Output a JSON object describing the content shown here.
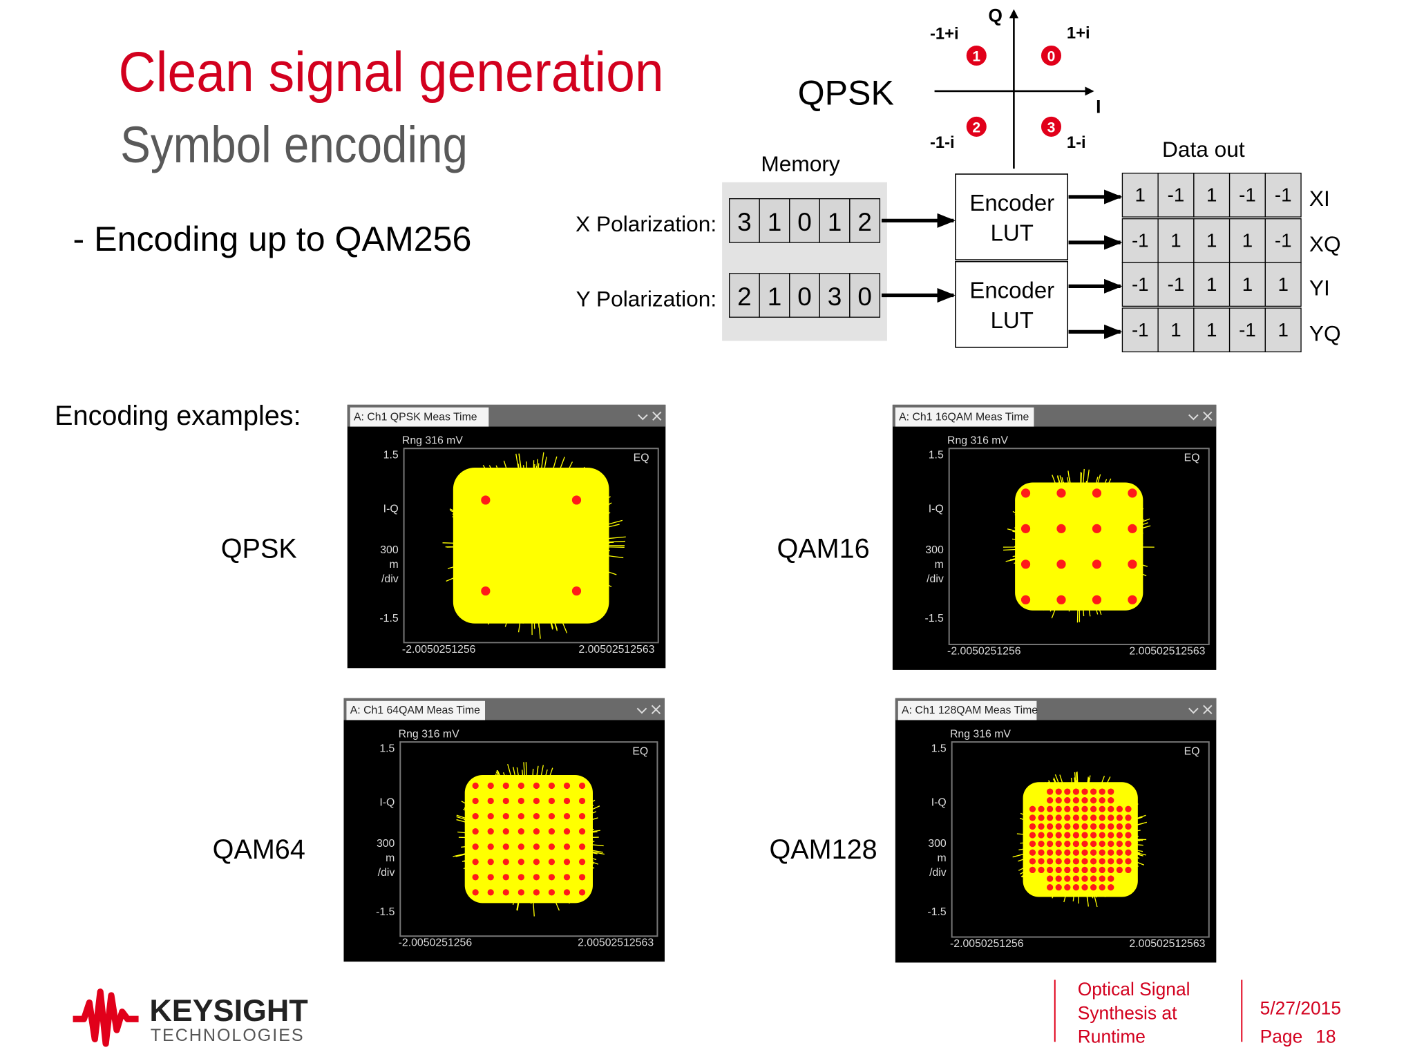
{
  "header": {
    "title": "Clean signal generation",
    "subtitle": "Symbol encoding"
  },
  "bullet": "- Encoding up to QAM256",
  "qpsk_diagram": {
    "label": "QPSK",
    "axis_q": "Q",
    "axis_i": "I",
    "points": [
      {
        "label": "-1+i",
        "symbol": "1"
      },
      {
        "label": "1+i",
        "symbol": "0"
      },
      {
        "label": "-1-i",
        "symbol": "2"
      },
      {
        "label": "1-i",
        "symbol": "3"
      }
    ]
  },
  "memory": {
    "title": "Memory",
    "rows": [
      {
        "label": "X Polarization:",
        "symbols": [
          "3",
          "1",
          "0",
          "1",
          "2"
        ]
      },
      {
        "label": "Y Polarization:",
        "symbols": [
          "2",
          "1",
          "0",
          "3",
          "0"
        ]
      }
    ]
  },
  "encoders": [
    {
      "lines": [
        "Encoder",
        "LUT"
      ]
    },
    {
      "lines": [
        "Encoder",
        "LUT"
      ]
    }
  ],
  "data_out": {
    "title": "Data out",
    "rows": [
      {
        "name": "XI",
        "values": [
          1,
          -1,
          1,
          -1,
          -1
        ]
      },
      {
        "name": "XQ",
        "values": [
          -1,
          1,
          1,
          1,
          -1
        ]
      },
      {
        "name": "YI",
        "values": [
          -1,
          -1,
          1,
          1,
          1
        ]
      },
      {
        "name": "YQ",
        "values": [
          -1,
          1,
          1,
          -1,
          1
        ]
      }
    ]
  },
  "examples": {
    "label": "Encoding examples:",
    "items": [
      {
        "name": "QPSK",
        "window_title": "A: Ch1 QPSK Meas Time",
        "range": "Rng 316 mV",
        "ymax": "1.5",
        "yaxis": "I-Q",
        "ydiv": [
          "300",
          "m",
          "/div"
        ],
        "ymin": "-1.5",
        "eq": "EQ",
        "xmin": "-2.0050251256",
        "xmax": "2.00502512563"
      },
      {
        "name": "QAM16",
        "window_title": "A: Ch1 16QAM Meas Time",
        "range": "Rng 316 mV",
        "ymax": "1.5",
        "yaxis": "I-Q",
        "ydiv": [
          "300",
          "m",
          "/div"
        ],
        "ymin": "-1.5",
        "eq": "EQ",
        "xmin": "-2.0050251256",
        "xmax": "2.00502512563"
      },
      {
        "name": "QAM64",
        "window_title": "A: Ch1 64QAM Meas Time",
        "range": "Rng 316 mV",
        "ymax": "1.5",
        "yaxis": "I-Q",
        "ydiv": [
          "300",
          "m",
          "/div"
        ],
        "ymin": "-1.5",
        "eq": "EQ",
        "xmin": "-2.0050251256",
        "xmax": "2.00502512563"
      },
      {
        "name": "QAM128",
        "window_title": "A: Ch1 128QAM Meas Time",
        "range": "Rng 316 mV",
        "ymax": "1.5",
        "yaxis": "I-Q",
        "ydiv": [
          "300",
          "m",
          "/div"
        ],
        "ymin": "-1.5",
        "eq": "EQ",
        "xmin": "-2.0050251256",
        "xmax": "2.00502512563"
      }
    ]
  },
  "footer": {
    "logo": "KEYSIGHT",
    "logo_sub": "TECHNOLOGIES",
    "title_lines": [
      "Optical Signal",
      "Synthesis at",
      "Runtime"
    ],
    "date": "5/27/2015",
    "page_label": "Page",
    "page_number": 18
  }
}
